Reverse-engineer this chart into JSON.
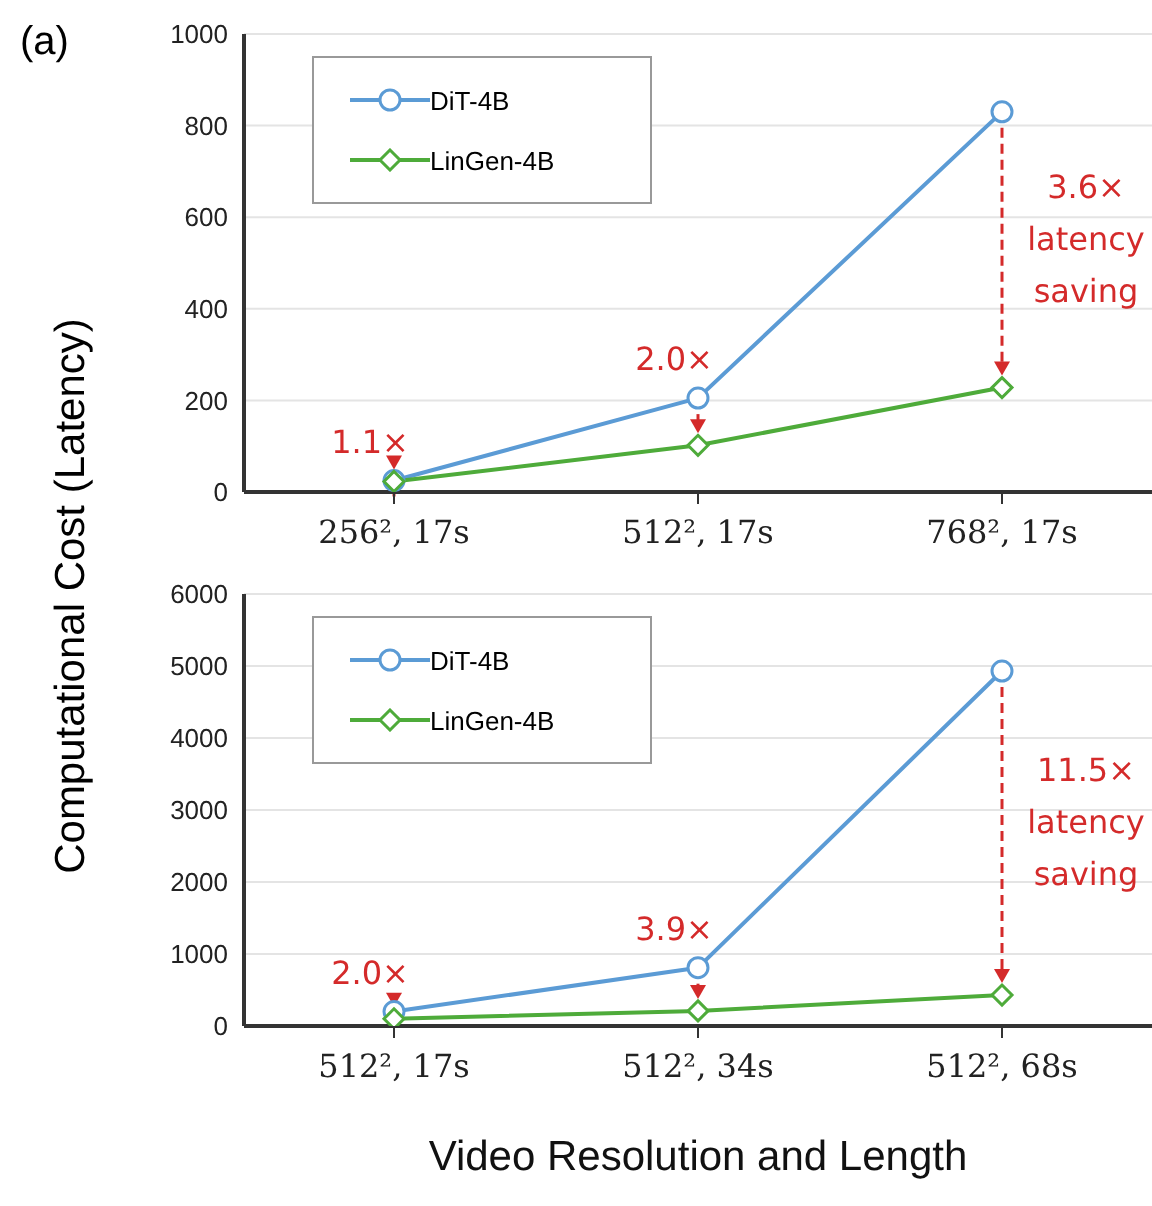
{
  "chart_data": [
    {
      "type": "line",
      "title": "(a)",
      "ylabel": "Computational Cost (Latency)",
      "categories": [
        "256², 17s",
        "512², 17s",
        "768², 17s"
      ],
      "series": [
        {
          "name": "DiT-4B",
          "color": "#5b9bd5",
          "marker": "circle",
          "values": [
            25,
            205,
            830
          ]
        },
        {
          "name": "LinGen-4B",
          "color": "#4eab3a",
          "marker": "diamond",
          "values": [
            23,
            102,
            228
          ]
        }
      ],
      "ylim": [
        0,
        1000
      ],
      "yticks": [
        0,
        200,
        400,
        600,
        800,
        1000
      ],
      "grid": "y",
      "legend": "top left",
      "annotations": [
        {
          "text": "1.1×",
          "x": "256², 17s",
          "y": 25
        },
        {
          "text": "2.0×",
          "x": "512², 17s",
          "y": 205
        },
        {
          "text": "3.6× latency saving",
          "x": "768², 17s",
          "y": 830
        }
      ]
    },
    {
      "type": "line",
      "xlabel": "Video Resolution and Length",
      "categories": [
        "512², 17s",
        "512², 34s",
        "512², 68s"
      ],
      "series": [
        {
          "name": "DiT-4B",
          "color": "#5b9bd5",
          "marker": "circle",
          "values": [
            200,
            810,
            4930
          ]
        },
        {
          "name": "LinGen-4B",
          "color": "#4eab3a",
          "marker": "diamond",
          "values": [
            100,
            210,
            430
          ]
        }
      ],
      "ylim": [
        0,
        6000
      ],
      "yticks": [
        0,
        1000,
        2000,
        3000,
        4000,
        5000,
        6000
      ],
      "grid": "y",
      "legend": "top left",
      "annotations": [
        {
          "text": "2.0×",
          "x": "512², 17s",
          "y": 200
        },
        {
          "text": "3.9×",
          "x": "512², 34s",
          "y": 810
        },
        {
          "text": "11.5× latency saving",
          "x": "512², 68s",
          "y": 4930
        }
      ]
    }
  ]
}
